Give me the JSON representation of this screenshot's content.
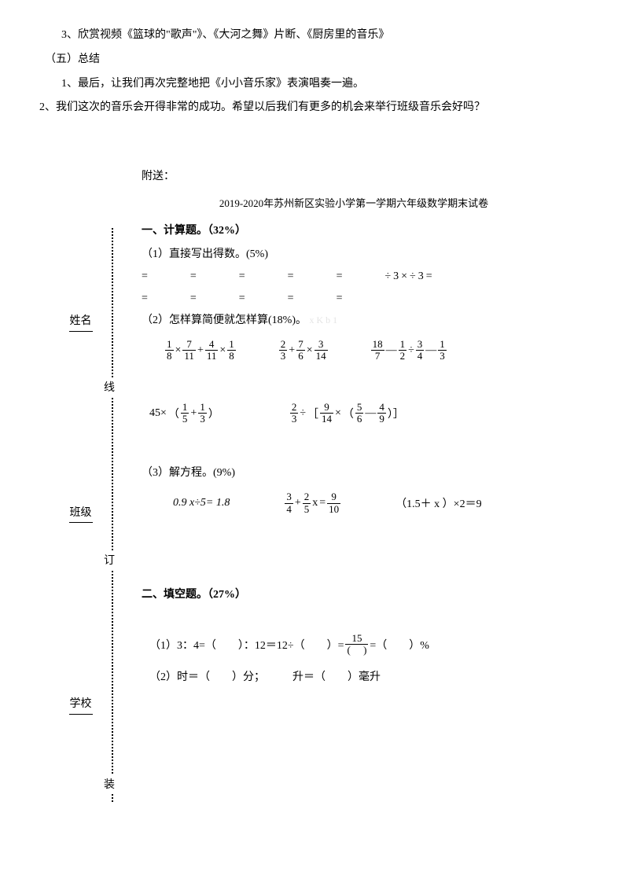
{
  "top": {
    "line1": "3、欣赏视频《篮球的\"歌声\"》、《大河之舞》片断、《厨房里的音乐》",
    "line2": "（五）总结",
    "line3": "1、最后，让我们再次完整地把《小小音乐家》表演唱奏一遍。",
    "line4": "2、我们这次的音乐会开得非常的成功。希望以后我们有更多的机会来举行班级音乐会好吗？"
  },
  "binding": {
    "label_xuexiao": "学校",
    "label_banji": "班级",
    "label_xingming": "姓名",
    "dot_zhuang": "装",
    "dot_ding": "订",
    "dot_xian": "线"
  },
  "content": {
    "attach": "附送：",
    "exam_title": "2019-2020年苏州新区实验小学第一学期六年级数学期末试卷",
    "section1_title": "一、计算题。（32%）",
    "sub1_1": "（1）直接写出得数。(5%)",
    "eq_row1": "=　　　=　　　=　　　=　　　=　　　÷3×÷3=",
    "eq_row2": "=　　　=　　　=　　　=　　　=",
    "sub1_2_prefix": "（2）怎样算简便就怎样算(18%)。",
    "watermark": "x K  b  1",
    "sub1_3": "（3）解方程。(9%)",
    "section2_title": "二、填空题。（27%）",
    "fill1": "（1）3：4=（　　）：12＝12÷（　　）=",
    "fill1_suffix": "=（　　）%",
    "fill2": "（2）时＝（　　）分；　　　升＝（　　）毫升",
    "expr_r1e1": {
      "p": [
        [
          "1",
          "8"
        ],
        "×",
        [
          "7",
          "11"
        ],
        "+",
        [
          "4",
          "11"
        ],
        "×",
        [
          "1",
          "8"
        ]
      ]
    },
    "expr_r1e2": {
      "p": [
        [
          "2",
          "3"
        ],
        "+",
        [
          "7",
          "6"
        ],
        "×",
        [
          "3",
          "14"
        ]
      ]
    },
    "expr_r1e3": {
      "p": [
        [
          "18",
          "7"
        ],
        "—",
        [
          "1",
          "2"
        ],
        "÷",
        [
          "3",
          "4"
        ],
        "—",
        [
          "1",
          "3"
        ]
      ]
    },
    "expr_r2e1": {
      "p": [
        "45×",
        "（",
        [
          "1",
          "5"
        ],
        "+",
        [
          "1",
          "3"
        ],
        "）"
      ]
    },
    "expr_r2e2": {
      "p": [
        [
          "2",
          "3"
        ],
        "÷",
        "［",
        [
          "9",
          "14"
        ],
        "×",
        "（",
        [
          "5",
          "6"
        ],
        "—",
        [
          "4",
          "9"
        ],
        "）］"
      ]
    },
    "expr_r3e1_text": "0.9 x÷5= 1.8",
    "expr_r3e2": {
      "p": [
        [
          "3",
          "4"
        ],
        "+",
        [
          "2",
          "5"
        ],
        "x",
        " = ",
        [
          "9",
          "10"
        ]
      ]
    },
    "expr_r3e3_text": "（1.5＋ x ）×2＝9",
    "frac_15": {
      "num": "15",
      "den": "(　 )"
    }
  }
}
